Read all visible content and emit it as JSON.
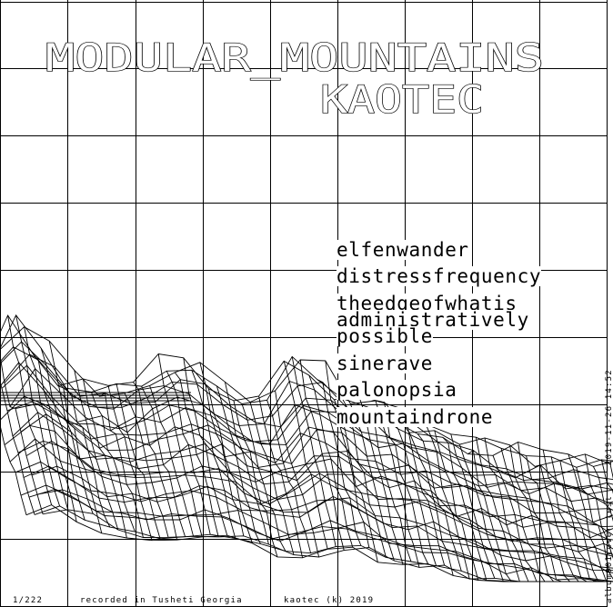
{
  "album": {
    "title": "MODULAR_MOUNTAINS",
    "artist": "KAOTEC"
  },
  "tracklist": [
    "elfenwander",
    "distressfrequency",
    "theedgeofwhatis",
    "administratively",
    "possible",
    "sinerave",
    "palonopsia",
    "mountaindrone"
  ],
  "footer": {
    "index": "1/222",
    "location": "recorded in Tusheti  Georgia",
    "credit": "kaotec (k) 2019"
  },
  "side_text": {
    "timestamp": "2019-11-26 14:52",
    "test_label": "album001cover test"
  },
  "colors": {
    "background": "#ffffff",
    "ink": "#000000"
  }
}
